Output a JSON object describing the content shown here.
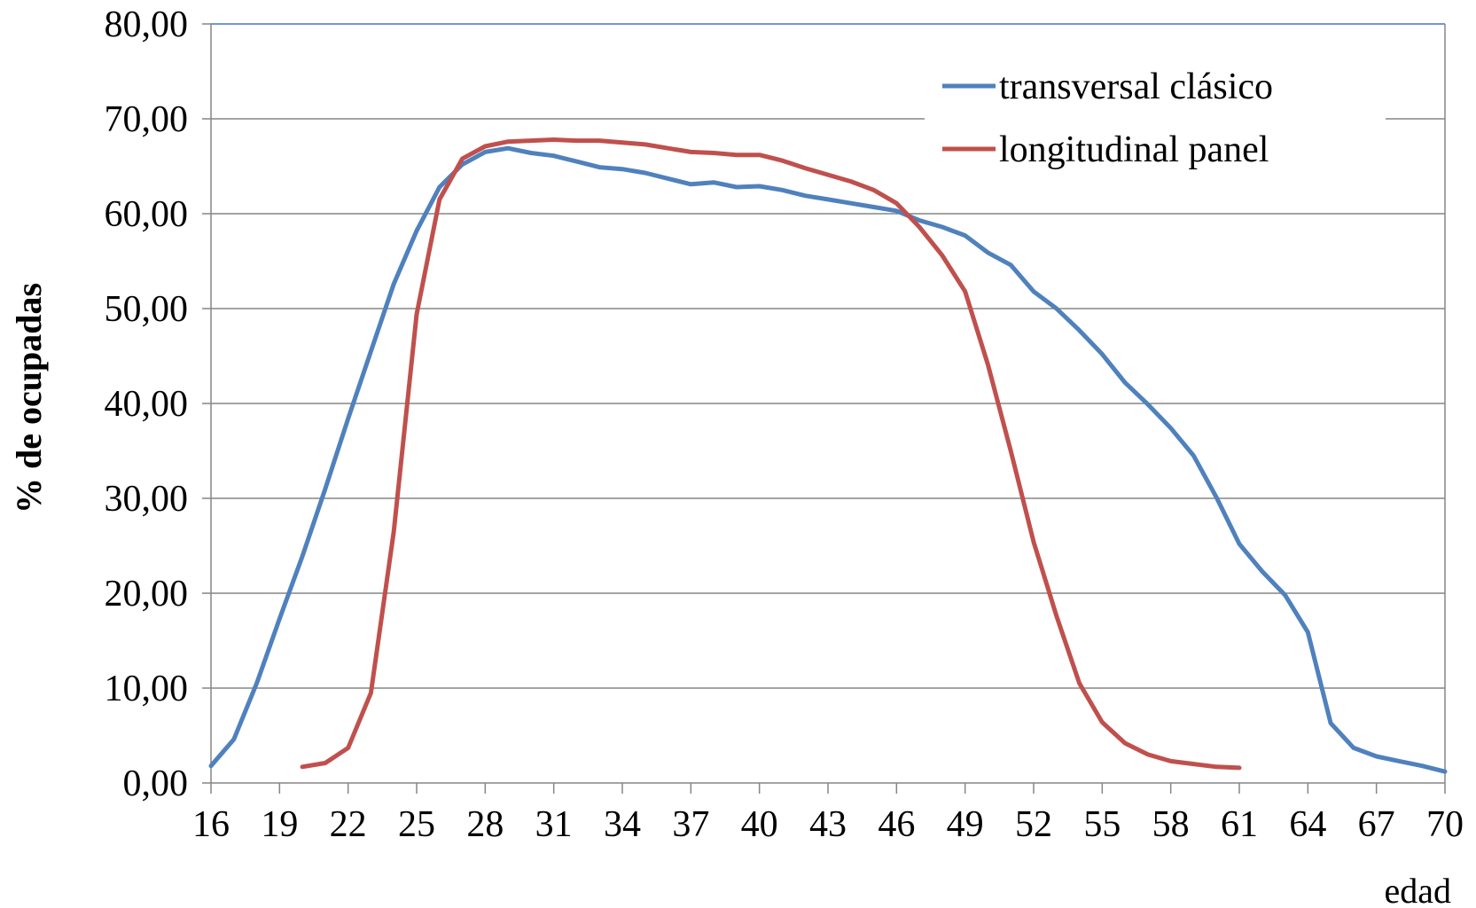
{
  "chart_data": {
    "type": "line",
    "title": "",
    "xlabel": "edad",
    "ylabel": "% de ocupadas",
    "xlim": [
      16,
      70
    ],
    "ylim": [
      0,
      80
    ],
    "y_ticks": [
      "0,00",
      "10,00",
      "20,00",
      "30,00",
      "40,00",
      "50,00",
      "60,00",
      "70,00",
      "80,00"
    ],
    "x_ticks": [
      "16",
      "19",
      "22",
      "25",
      "28",
      "31",
      "34",
      "37",
      "40",
      "43",
      "46",
      "49",
      "52",
      "55",
      "58",
      "61",
      "64",
      "67",
      "70"
    ],
    "grid": "horizontal",
    "legend_position": "top-right",
    "series": [
      {
        "name": "transversal clásico",
        "color": "#4F81BD",
        "x": [
          16,
          17,
          18,
          19,
          20,
          21,
          22,
          23,
          24,
          25,
          26,
          27,
          28,
          29,
          30,
          31,
          32,
          33,
          34,
          35,
          36,
          37,
          38,
          39,
          40,
          41,
          42,
          43,
          44,
          45,
          46,
          47,
          48,
          49,
          50,
          51,
          52,
          53,
          54,
          55,
          56,
          57,
          58,
          59,
          60,
          61,
          62,
          63,
          64,
          65,
          66,
          67,
          68,
          69,
          70
        ],
        "y": [
          1.8,
          4.6,
          10.5,
          17.3,
          23.9,
          31.0,
          38.4,
          45.5,
          52.6,
          58.2,
          62.8,
          65.2,
          66.5,
          66.9,
          66.4,
          66.1,
          65.5,
          64.9,
          64.7,
          64.3,
          63.7,
          63.1,
          63.3,
          62.8,
          62.9,
          62.5,
          61.9,
          61.5,
          61.1,
          60.7,
          60.3,
          59.3,
          58.6,
          57.7,
          55.9,
          54.6,
          51.8,
          50.0,
          47.7,
          45.2,
          42.2,
          39.9,
          37.4,
          34.5,
          30.1,
          25.2,
          22.3,
          19.8,
          15.9,
          6.3,
          3.7,
          2.8,
          2.3,
          1.8,
          1.2
        ]
      },
      {
        "name": "longitudinal panel",
        "color": "#C0504D",
        "x": [
          20,
          21,
          22,
          23,
          24,
          25,
          26,
          27,
          28,
          29,
          30,
          31,
          32,
          33,
          34,
          35,
          36,
          37,
          38,
          39,
          40,
          41,
          42,
          43,
          44,
          45,
          46,
          47,
          48,
          49,
          50,
          51,
          52,
          53,
          54,
          55,
          56,
          57,
          58,
          59,
          60,
          61
        ],
        "y": [
          1.7,
          2.1,
          3.7,
          9.5,
          26.5,
          49.4,
          61.5,
          65.8,
          67.1,
          67.6,
          67.7,
          67.8,
          67.7,
          67.7,
          67.5,
          67.3,
          66.9,
          66.5,
          66.4,
          66.2,
          66.2,
          65.6,
          64.8,
          64.1,
          63.4,
          62.5,
          61.1,
          58.6,
          55.6,
          51.8,
          44.1,
          35.0,
          25.4,
          17.6,
          10.5,
          6.4,
          4.2,
          3.0,
          2.3,
          2.0,
          1.7,
          1.6
        ]
      }
    ]
  }
}
